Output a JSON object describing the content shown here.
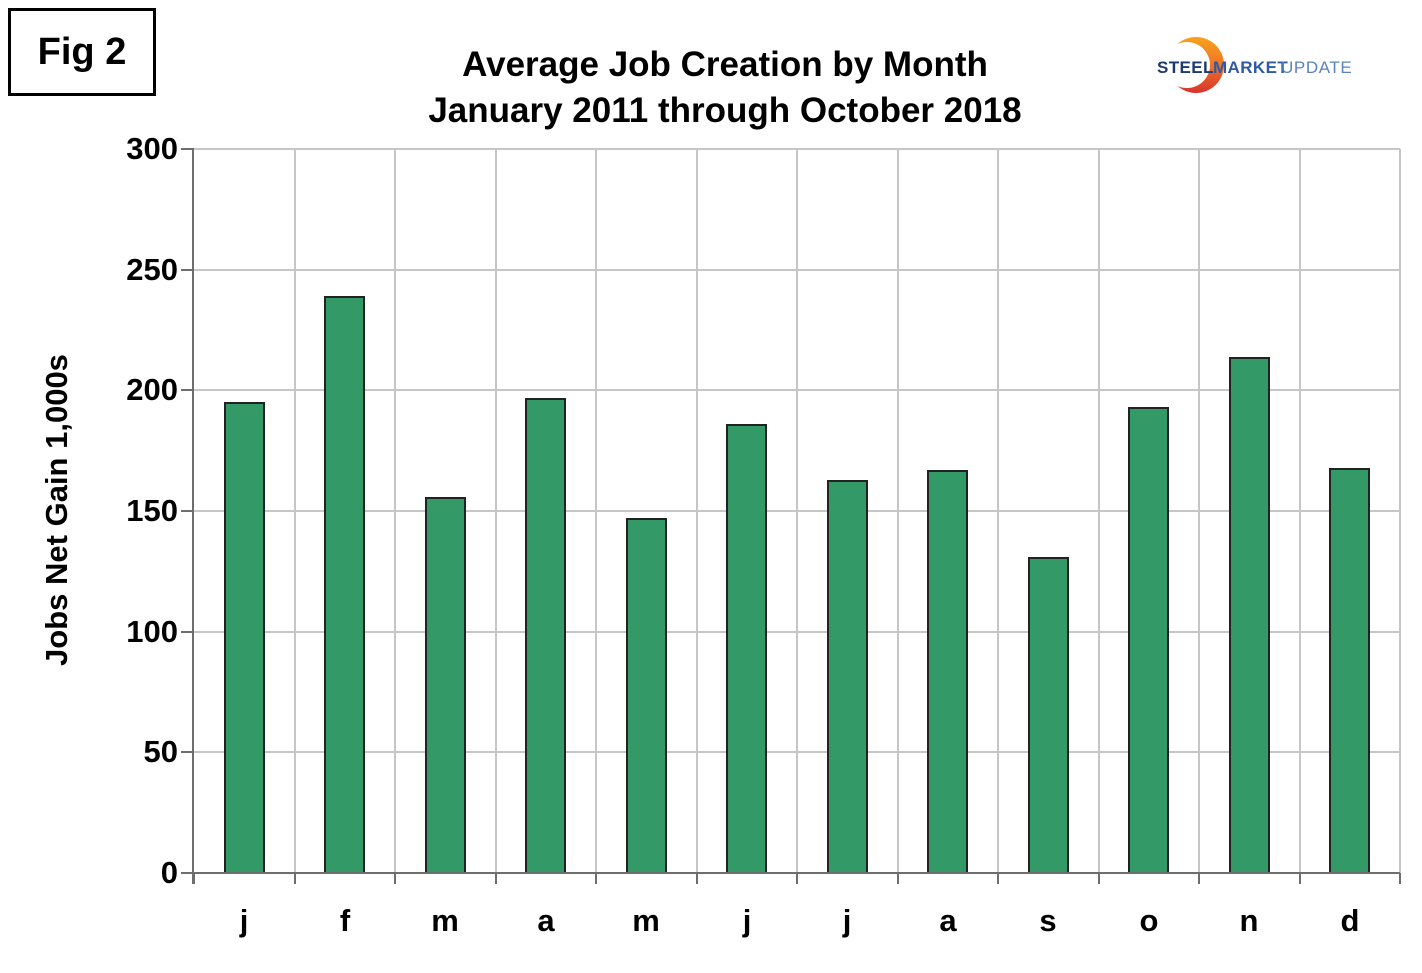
{
  "header": {
    "fig_label": "Fig 2",
    "title_line1": "Average Job Creation by Month",
    "title_line2": "January 2011 through October 2018"
  },
  "logo": {
    "word1": "STEEL",
    "word2": "MARKET",
    "word3": "UPDATE",
    "word1_color": "#1d3a6d",
    "word2_color": "#2e5aa3",
    "word3_color": "#5b82ba",
    "crescent_top_color": "#f9a11b",
    "crescent_bottom_color": "#d7342c"
  },
  "chart_data": {
    "type": "bar",
    "title": "Average Job Creation by Month",
    "subtitle": "January 2011 through October 2018",
    "categories": [
      "j",
      "f",
      "m",
      "a",
      "m",
      "j",
      "j",
      "a",
      "s",
      "o",
      "n",
      "d"
    ],
    "values": [
      195,
      239,
      156,
      197,
      147,
      186,
      163,
      167,
      131,
      193,
      214,
      168
    ],
    "xlabel": "",
    "ylabel": "Jobs Net Gain 1,000s",
    "ylim": [
      0,
      300
    ],
    "ytick_step": 50,
    "grid": true,
    "legend_position": "none",
    "colors": {
      "bar_fill": "#339966",
      "bar_border": "#222222",
      "gridline": "#c6c6c6",
      "axis": "#6e6e6e",
      "text": "#000000"
    }
  }
}
